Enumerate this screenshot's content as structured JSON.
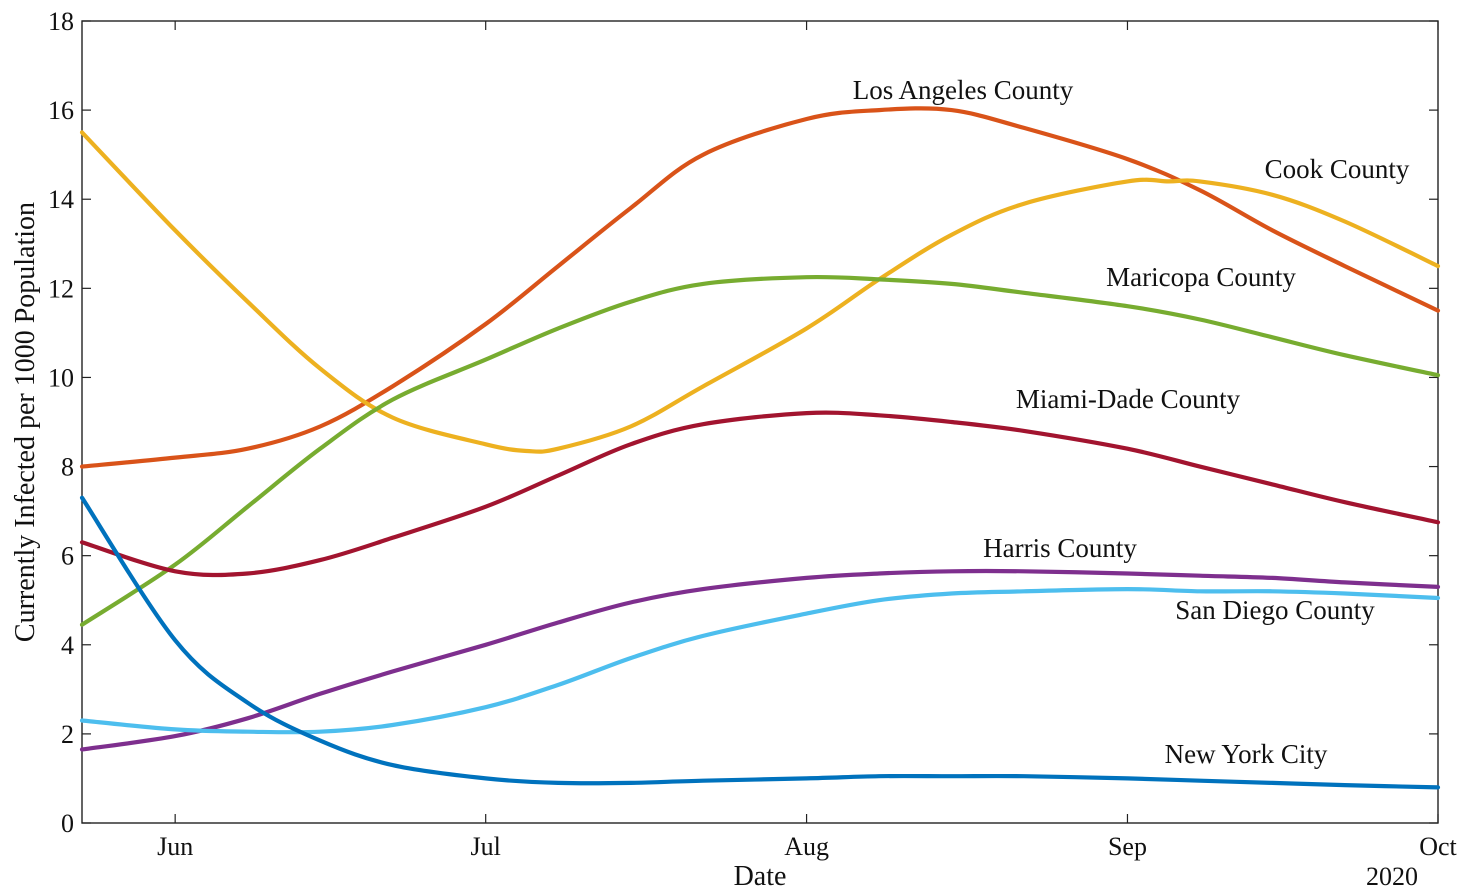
{
  "chart_data": {
    "type": "line",
    "xlabel": "Date",
    "ylabel": "Currently Infected per 1000 Population",
    "x_axis": {
      "type": "date",
      "range": [
        "2020-05-23",
        "2020-10-01"
      ],
      "ticks": [
        {
          "date": "2020-06-01",
          "label": "Jun"
        },
        {
          "date": "2020-07-01",
          "label": "Jul"
        },
        {
          "date": "2020-08-01",
          "label": "Aug"
        },
        {
          "date": "2020-09-01",
          "label": "Sep"
        },
        {
          "date": "2020-10-01",
          "label": "Oct"
        }
      ],
      "year_label": "2020"
    },
    "ylim": [
      0,
      18
    ],
    "y_ticks": [
      0,
      2,
      4,
      6,
      8,
      10,
      12,
      14,
      16,
      18
    ],
    "grid": false,
    "series": [
      {
        "name": "Los Angeles County",
        "color": "#D95319",
        "x": [
          "2020-05-23",
          "2020-06-01",
          "2020-06-08",
          "2020-06-15",
          "2020-06-22",
          "2020-07-01",
          "2020-07-08",
          "2020-07-15",
          "2020-07-22",
          "2020-08-01",
          "2020-08-08",
          "2020-08-15",
          "2020-08-22",
          "2020-09-01",
          "2020-09-08",
          "2020-09-15",
          "2020-09-22",
          "2020-10-01"
        ],
        "y": [
          8.0,
          8.2,
          8.4,
          8.9,
          9.8,
          11.2,
          12.5,
          13.8,
          15.0,
          15.8,
          16.0,
          16.0,
          15.6,
          14.9,
          14.2,
          13.3,
          12.5,
          11.5
        ]
      },
      {
        "name": "Cook County",
        "color": "#EDB120",
        "x": [
          "2020-05-23",
          "2020-06-01",
          "2020-06-08",
          "2020-06-15",
          "2020-06-22",
          "2020-07-01",
          "2020-07-05",
          "2020-07-08",
          "2020-07-15",
          "2020-07-22",
          "2020-08-01",
          "2020-08-08",
          "2020-08-15",
          "2020-08-22",
          "2020-09-01",
          "2020-09-05",
          "2020-09-08",
          "2020-09-15",
          "2020-09-22",
          "2020-10-01"
        ],
        "y": [
          15.5,
          13.3,
          11.7,
          10.2,
          9.1,
          8.5,
          8.35,
          8.4,
          8.9,
          9.8,
          11.1,
          12.2,
          13.2,
          13.9,
          14.4,
          14.4,
          14.4,
          14.1,
          13.5,
          12.5
        ]
      },
      {
        "name": "Maricopa County",
        "color": "#77AC30",
        "x": [
          "2020-05-23",
          "2020-06-01",
          "2020-06-08",
          "2020-06-15",
          "2020-06-22",
          "2020-07-01",
          "2020-07-08",
          "2020-07-15",
          "2020-07-22",
          "2020-08-01",
          "2020-08-08",
          "2020-08-15",
          "2020-08-22",
          "2020-09-01",
          "2020-09-08",
          "2020-09-15",
          "2020-09-22",
          "2020-10-01"
        ],
        "y": [
          4.45,
          5.8,
          7.1,
          8.4,
          9.5,
          10.4,
          11.1,
          11.7,
          12.1,
          12.25,
          12.2,
          12.1,
          11.9,
          11.6,
          11.3,
          10.9,
          10.5,
          10.05
        ]
      },
      {
        "name": "Miami-Dade County",
        "color": "#A2142F",
        "x": [
          "2020-05-23",
          "2020-06-01",
          "2020-06-08",
          "2020-06-15",
          "2020-06-22",
          "2020-07-01",
          "2020-07-08",
          "2020-07-15",
          "2020-07-22",
          "2020-08-01",
          "2020-08-08",
          "2020-08-15",
          "2020-08-22",
          "2020-09-01",
          "2020-09-08",
          "2020-09-15",
          "2020-09-22",
          "2020-10-01"
        ],
        "y": [
          6.3,
          5.65,
          5.6,
          5.9,
          6.4,
          7.1,
          7.8,
          8.5,
          8.95,
          9.2,
          9.15,
          9.0,
          8.8,
          8.4,
          8.0,
          7.6,
          7.2,
          6.75
        ]
      },
      {
        "name": "Harris County",
        "color": "#7E2F8E",
        "x": [
          "2020-05-23",
          "2020-06-01",
          "2020-06-08",
          "2020-06-15",
          "2020-06-22",
          "2020-07-01",
          "2020-07-08",
          "2020-07-15",
          "2020-07-22",
          "2020-08-01",
          "2020-08-08",
          "2020-08-15",
          "2020-08-22",
          "2020-09-01",
          "2020-09-08",
          "2020-09-15",
          "2020-09-22",
          "2020-10-01"
        ],
        "y": [
          1.65,
          1.95,
          2.35,
          2.9,
          3.4,
          4.0,
          4.5,
          4.95,
          5.25,
          5.5,
          5.6,
          5.65,
          5.65,
          5.6,
          5.55,
          5.5,
          5.4,
          5.3
        ]
      },
      {
        "name": "San Diego County",
        "color": "#4DBEEE",
        "x": [
          "2020-05-23",
          "2020-06-01",
          "2020-06-08",
          "2020-06-15",
          "2020-06-22",
          "2020-07-01",
          "2020-07-08",
          "2020-07-15",
          "2020-07-22",
          "2020-08-01",
          "2020-08-08",
          "2020-08-15",
          "2020-08-22",
          "2020-09-01",
          "2020-09-08",
          "2020-09-15",
          "2020-09-22",
          "2020-10-01"
        ],
        "y": [
          2.3,
          2.1,
          2.05,
          2.05,
          2.2,
          2.6,
          3.1,
          3.7,
          4.2,
          4.7,
          5.0,
          5.15,
          5.2,
          5.25,
          5.2,
          5.2,
          5.15,
          5.05
        ]
      },
      {
        "name": "New York City",
        "color": "#0072BD",
        "x": [
          "2020-05-23",
          "2020-06-01",
          "2020-06-08",
          "2020-06-15",
          "2020-06-22",
          "2020-07-01",
          "2020-07-08",
          "2020-07-15",
          "2020-07-22",
          "2020-08-01",
          "2020-08-08",
          "2020-08-15",
          "2020-08-22",
          "2020-09-01",
          "2020-09-08",
          "2020-09-15",
          "2020-09-22",
          "2020-10-01"
        ],
        "y": [
          7.3,
          4.1,
          2.7,
          1.85,
          1.3,
          1.0,
          0.9,
          0.9,
          0.95,
          1.0,
          1.05,
          1.05,
          1.05,
          1.0,
          0.95,
          0.9,
          0.85,
          0.8
        ]
      }
    ]
  }
}
